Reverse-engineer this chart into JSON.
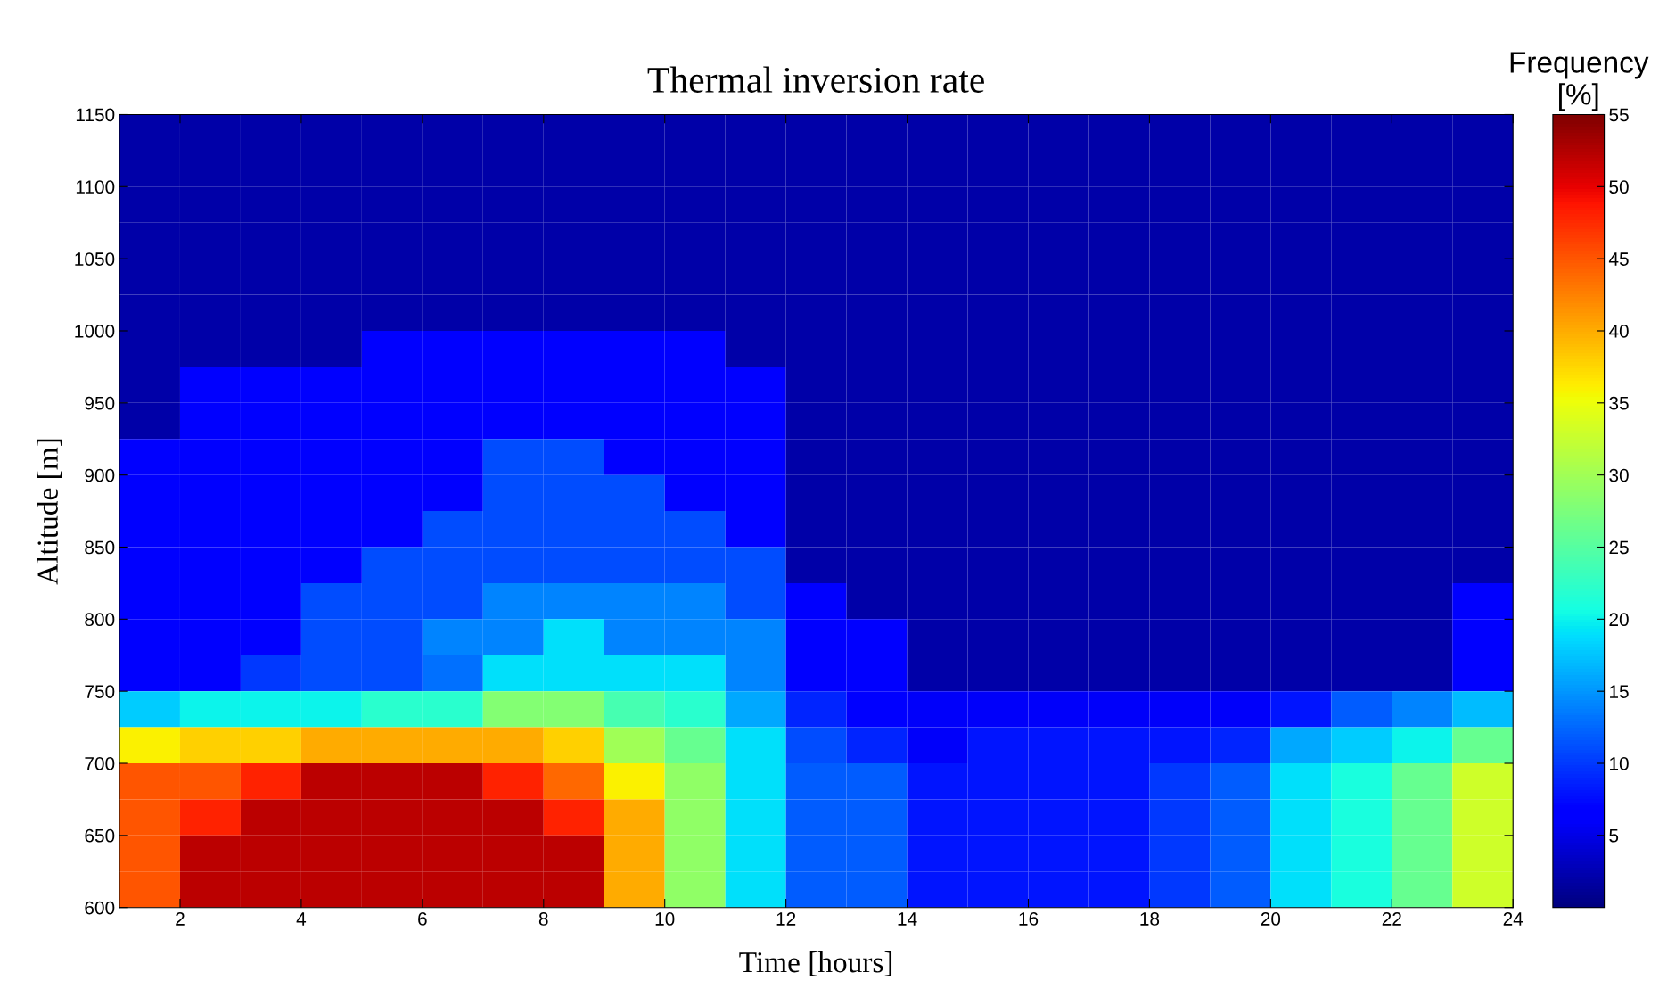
{
  "chart_data": {
    "type": "heatmap",
    "title": "Thermal inversion rate",
    "xlabel": "Time [hours]",
    "ylabel": "Altitude [m]",
    "clabel": "Frequency\n[%]",
    "xlim": [
      1,
      24
    ],
    "xticks": [
      2,
      4,
      6,
      8,
      10,
      12,
      14,
      16,
      18,
      20,
      22,
      24
    ],
    "ylim": [
      600,
      1150
    ],
    "yticks": [
      600,
      650,
      700,
      750,
      800,
      850,
      900,
      950,
      1000,
      1050,
      1100,
      1150
    ],
    "clim": [
      0,
      55
    ],
    "cticks": [
      5,
      10,
      15,
      20,
      25,
      30,
      35,
      40,
      45,
      50,
      55
    ],
    "cells": [
      [
        2,
        2,
        2,
        2,
        2,
        2,
        2,
        2,
        2,
        2,
        2,
        2,
        2,
        2,
        2,
        2,
        2,
        2,
        2,
        2,
        2,
        2,
        2
      ],
      [
        2,
        2,
        2,
        2,
        2,
        2,
        2,
        2,
        2,
        2,
        2,
        2,
        2,
        2,
        2,
        2,
        2,
        2,
        2,
        2,
        2,
        2,
        2
      ],
      [
        2,
        2,
        2,
        2,
        2,
        2,
        2,
        2,
        2,
        2,
        2,
        2,
        2,
        2,
        2,
        2,
        2,
        2,
        2,
        2,
        2,
        2,
        2
      ],
      [
        2,
        2,
        2,
        2,
        2,
        2,
        2,
        2,
        2,
        2,
        2,
        2,
        2,
        2,
        2,
        2,
        2,
        2,
        2,
        2,
        2,
        2,
        2
      ],
      [
        2,
        2,
        2,
        2,
        2,
        2,
        2,
        2,
        2,
        2,
        2,
        2,
        2,
        2,
        2,
        2,
        2,
        2,
        2,
        2,
        2,
        2,
        2
      ],
      [
        2,
        2,
        2,
        2,
        2,
        2,
        2,
        2,
        2,
        2,
        2,
        2,
        2,
        2,
        2,
        2,
        2,
        2,
        2,
        2,
        2,
        2,
        2
      ],
      [
        2,
        2,
        2,
        2,
        7,
        7,
        7,
        7,
        7,
        7,
        2,
        2,
        2,
        2,
        2,
        2,
        2,
        2,
        2,
        2,
        2,
        2,
        2
      ],
      [
        2,
        7,
        7,
        7,
        7,
        7,
        7,
        7,
        7,
        7,
        7,
        2,
        2,
        2,
        2,
        2,
        2,
        2,
        2,
        2,
        2,
        2,
        2
      ],
      [
        2,
        7,
        7,
        7,
        7,
        7,
        7,
        7,
        7,
        7,
        7,
        2,
        2,
        2,
        2,
        2,
        2,
        2,
        2,
        2,
        2,
        2,
        2
      ],
      [
        7,
        7,
        7,
        7,
        7,
        7,
        11,
        11,
        7,
        7,
        7,
        2,
        2,
        2,
        2,
        2,
        2,
        2,
        2,
        2,
        2,
        2,
        2
      ],
      [
        7,
        7,
        7,
        7,
        7,
        7,
        11,
        11,
        11,
        7,
        7,
        2,
        2,
        2,
        2,
        2,
        2,
        2,
        2,
        2,
        2,
        2,
        2
      ],
      [
        7,
        7,
        7,
        7,
        7,
        11,
        11,
        11,
        11,
        11,
        7,
        2,
        2,
        2,
        2,
        2,
        2,
        2,
        2,
        2,
        2,
        2,
        2
      ],
      [
        7,
        7,
        7,
        7,
        11,
        11,
        11,
        11,
        11,
        11,
        11,
        2,
        2,
        2,
        2,
        2,
        2,
        2,
        2,
        2,
        2,
        2,
        2
      ],
      [
        7,
        7,
        7,
        11,
        11,
        11,
        14,
        14,
        14,
        14,
        11,
        7,
        2,
        2,
        2,
        2,
        2,
        2,
        2,
        2,
        2,
        2,
        7
      ],
      [
        7,
        7,
        7,
        11,
        11,
        14,
        14,
        19,
        14,
        14,
        14,
        7,
        7,
        2,
        2,
        2,
        2,
        2,
        2,
        2,
        2,
        2,
        7
      ],
      [
        7,
        7,
        10,
        11,
        11,
        13,
        19,
        19,
        19,
        19,
        14,
        7,
        7,
        2,
        2,
        2,
        2,
        2,
        2,
        2,
        2,
        2,
        7
      ],
      [
        18,
        20,
        20,
        20,
        22,
        22,
        28,
        28,
        24,
        22,
        16,
        9,
        7,
        6,
        6,
        6,
        6,
        6,
        6,
        8,
        12,
        14,
        17
      ],
      [
        36,
        38,
        38,
        40,
        40,
        40,
        40,
        38,
        30,
        26,
        19,
        11,
        9,
        6,
        8,
        8,
        8,
        8,
        9,
        16,
        18,
        20,
        26
      ],
      [
        45,
        45,
        48,
        52,
        52,
        52,
        48,
        44,
        36,
        29,
        19,
        12,
        12,
        8,
        8,
        8,
        8,
        10,
        12,
        19,
        21,
        26,
        33
      ],
      [
        45,
        48,
        52,
        52,
        52,
        52,
        52,
        48,
        40,
        29,
        19,
        12,
        12,
        8,
        8,
        8,
        8,
        10,
        12,
        19,
        21,
        26,
        33
      ],
      [
        45,
        52,
        52,
        52,
        52,
        52,
        52,
        52,
        40,
        29,
        19,
        12,
        12,
        8,
        8,
        8,
        8,
        10,
        12,
        19,
        21,
        26,
        33
      ],
      [
        45,
        52,
        52,
        52,
        52,
        52,
        52,
        52,
        40,
        29,
        19,
        12,
        12,
        8,
        8,
        8,
        8,
        10,
        12,
        19,
        21,
        26,
        33
      ]
    ]
  }
}
